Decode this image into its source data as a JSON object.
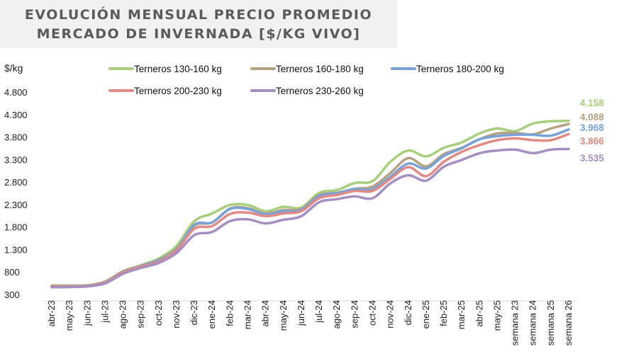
{
  "title": {
    "line1": "EVOLUCIÓN MENSUAL PRECIO PROMEDIO",
    "line2": "MERCADO DE INVERNADA [$/KG VIVO]"
  },
  "chart_data": {
    "type": "line",
    "ylabel": "$/kg",
    "xlabel": "",
    "ylim": [
      300,
      4800
    ],
    "yticks": [
      300,
      800,
      1300,
      1800,
      2300,
      2800,
      3300,
      3800,
      4300,
      4800
    ],
    "ytick_labels": [
      "300",
      "800",
      "1.300",
      "1.800",
      "2.300",
      "2.800",
      "3.300",
      "3.800",
      "4.300",
      "4.800"
    ],
    "grid": false,
    "legend_position": "top",
    "categories": [
      "abr-23",
      "may-23",
      "jun-23",
      "jul-23",
      "ago-23",
      "sep-23",
      "oct-23",
      "nov-23",
      "dic-23",
      "ene-24",
      "feb-24",
      "mar-24",
      "abr-24",
      "may-24",
      "jun-24",
      "jul-24",
      "ago-24",
      "sep-24",
      "oct-24",
      "nov-24",
      "dic-24",
      "ene-25",
      "feb-25",
      "mar-25",
      "abr-25",
      "may-25",
      "semana 23",
      "semana 24",
      "semana 25",
      "semana 26"
    ],
    "series": [
      {
        "name": "Terneros 130-160 kg",
        "color": "#a9cf7e",
        "end_label": "4.158",
        "values": [
          500,
          500,
          505,
          590,
          820,
          950,
          1100,
          1380,
          1930,
          2100,
          2290,
          2290,
          2150,
          2250,
          2230,
          2560,
          2620,
          2780,
          2820,
          3250,
          3500,
          3370,
          3560,
          3680,
          3880,
          3990,
          3930,
          4100,
          4150,
          4158
        ]
      },
      {
        "name": "Terneros 160-180 kg",
        "color": "#b5a282",
        "end_label": "4.088",
        "values": [
          490,
          490,
          500,
          580,
          810,
          935,
          1070,
          1320,
          1830,
          1900,
          2210,
          2220,
          2100,
          2180,
          2200,
          2510,
          2560,
          2650,
          2700,
          3000,
          3330,
          3150,
          3420,
          3560,
          3750,
          3880,
          3890,
          3860,
          3990,
          4088
        ]
      },
      {
        "name": "Terneros 180-200 kg",
        "color": "#79a2d8",
        "end_label": "3.968",
        "values": [
          480,
          485,
          495,
          575,
          800,
          930,
          1060,
          1300,
          1850,
          1900,
          2200,
          2200,
          2080,
          2150,
          2180,
          2490,
          2550,
          2640,
          2640,
          2920,
          3210,
          3100,
          3380,
          3550,
          3750,
          3820,
          3850,
          3850,
          3830,
          3968
        ]
      },
      {
        "name": "Terneros 200-230 kg",
        "color": "#e28a85",
        "end_label": "3.866",
        "values": [
          480,
          480,
          490,
          565,
          790,
          920,
          1030,
          1280,
          1760,
          1820,
          2090,
          2120,
          2040,
          2100,
          2150,
          2440,
          2510,
          2600,
          2600,
          2870,
          3130,
          2930,
          3250,
          3470,
          3620,
          3730,
          3770,
          3730,
          3730,
          3866
        ]
      },
      {
        "name": "Terneros 230-260 kg",
        "color": "#a58fc2",
        "end_label": "3.535",
        "values": [
          460,
          465,
          480,
          545,
          760,
          890,
          1000,
          1220,
          1620,
          1690,
          1930,
          1970,
          1880,
          1960,
          2040,
          2350,
          2420,
          2480,
          2440,
          2770,
          2950,
          2830,
          3140,
          3290,
          3440,
          3500,
          3520,
          3440,
          3520,
          3535
        ]
      }
    ]
  }
}
